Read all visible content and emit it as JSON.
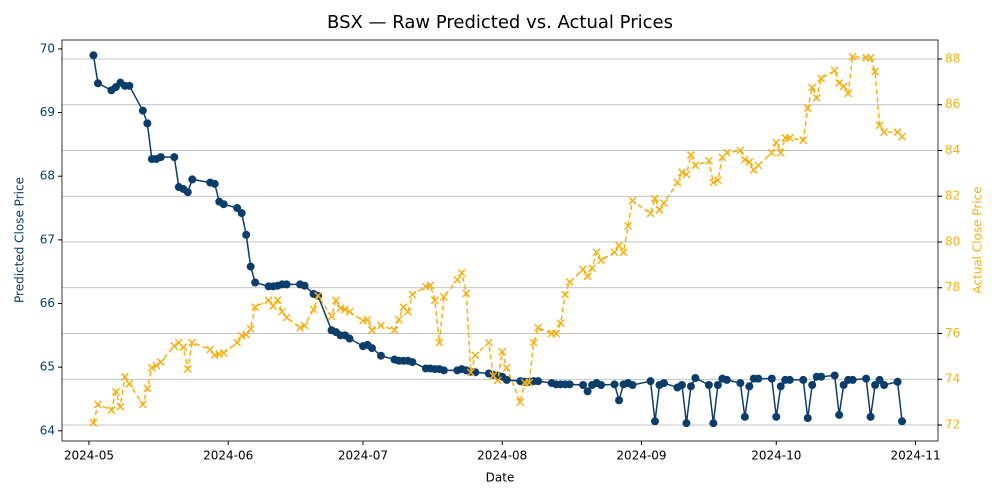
{
  "chart_data": {
    "type": "line",
    "title": "BSX — Raw Predicted vs. Actual Prices",
    "xlabel": "Date",
    "ylabel": "Predicted Close Price",
    "y2label": "Actual Close Price",
    "x": [
      "2024-05-02",
      "2024-05-03",
      "2024-05-06",
      "2024-05-07",
      "2024-05-08",
      "2024-05-09",
      "2024-05-10",
      "2024-05-13",
      "2024-05-14",
      "2024-05-15",
      "2024-05-16",
      "2024-05-17",
      "2024-05-20",
      "2024-05-21",
      "2024-05-22",
      "2024-05-23",
      "2024-05-24",
      "2024-05-28",
      "2024-05-29",
      "2024-05-30",
      "2024-05-31",
      "2024-06-03",
      "2024-06-04",
      "2024-06-05",
      "2024-06-06",
      "2024-06-07",
      "2024-06-10",
      "2024-06-11",
      "2024-06-12",
      "2024-06-13",
      "2024-06-14",
      "2024-06-17",
      "2024-06-18",
      "2024-06-20",
      "2024-06-21",
      "2024-06-24",
      "2024-06-25",
      "2024-06-26",
      "2024-06-27",
      "2024-06-28",
      "2024-07-01",
      "2024-07-02",
      "2024-07-03",
      "2024-07-05",
      "2024-07-08",
      "2024-07-09",
      "2024-07-10",
      "2024-07-11",
      "2024-07-12",
      "2024-07-15",
      "2024-07-16",
      "2024-07-17",
      "2024-07-18",
      "2024-07-19",
      "2024-07-22",
      "2024-07-23",
      "2024-07-24",
      "2024-07-25",
      "2024-07-26",
      "2024-07-29",
      "2024-07-30",
      "2024-07-31",
      "2024-08-01",
      "2024-08-02",
      "2024-08-05",
      "2024-08-06",
      "2024-08-07",
      "2024-08-08",
      "2024-08-09",
      "2024-08-12",
      "2024-08-13",
      "2024-08-14",
      "2024-08-15",
      "2024-08-16",
      "2024-08-19",
      "2024-08-20",
      "2024-08-21",
      "2024-08-22",
      "2024-08-23",
      "2024-08-26",
      "2024-08-27",
      "2024-08-28",
      "2024-08-29",
      "2024-08-30",
      "2024-09-03",
      "2024-09-04",
      "2024-09-05",
      "2024-09-06",
      "2024-09-09",
      "2024-09-10",
      "2024-09-11",
      "2024-09-12",
      "2024-09-13",
      "2024-09-16",
      "2024-09-17",
      "2024-09-18",
      "2024-09-19",
      "2024-09-20",
      "2024-09-23",
      "2024-09-24",
      "2024-09-25",
      "2024-09-26",
      "2024-09-27",
      "2024-09-30",
      "2024-10-01",
      "2024-10-02",
      "2024-10-03",
      "2024-10-04",
      "2024-10-07",
      "2024-10-08",
      "2024-10-09",
      "2024-10-10",
      "2024-10-11",
      "2024-10-14",
      "2024-10-15",
      "2024-10-16",
      "2024-10-17",
      "2024-10-18",
      "2024-10-21",
      "2024-10-22",
      "2024-10-23",
      "2024-10-24",
      "2024-10-25",
      "2024-10-28",
      "2024-10-29"
    ],
    "series": [
      {
        "name": "Predicted",
        "color": "#0b3d6b",
        "marker": "circle",
        "dash": false,
        "axis": "y",
        "values": [
          69.9,
          69.46,
          69.35,
          69.4,
          69.47,
          69.42,
          69.42,
          69.03,
          68.83,
          68.27,
          68.27,
          68.3,
          68.3,
          67.83,
          67.8,
          67.75,
          67.95,
          67.9,
          67.88,
          67.6,
          67.56,
          67.5,
          67.42,
          67.08,
          66.58,
          66.33,
          66.27,
          66.27,
          66.28,
          66.3,
          66.3,
          66.3,
          66.28,
          66.15,
          66.12,
          65.58,
          65.55,
          65.5,
          65.5,
          65.45,
          65.33,
          65.35,
          65.3,
          65.18,
          65.12,
          65.1,
          65.1,
          65.1,
          65.08,
          64.98,
          64.98,
          64.97,
          64.97,
          64.95,
          64.95,
          64.97,
          64.95,
          64.93,
          64.92,
          64.9,
          64.88,
          64.87,
          64.85,
          64.8,
          64.78,
          64.77,
          64.77,
          64.78,
          64.78,
          64.75,
          64.73,
          64.73,
          64.73,
          64.73,
          64.72,
          64.62,
          64.72,
          64.75,
          64.72,
          64.73,
          64.48,
          64.73,
          64.75,
          64.72,
          64.78,
          64.15,
          64.72,
          64.75,
          64.68,
          64.72,
          64.12,
          64.7,
          64.83,
          64.72,
          64.12,
          64.72,
          64.82,
          64.8,
          64.75,
          64.22,
          64.7,
          64.82,
          64.82,
          64.82,
          64.22,
          64.7,
          64.8,
          64.8,
          64.8,
          64.2,
          64.72,
          64.85,
          64.85,
          64.87,
          64.25,
          64.72,
          64.8,
          64.8,
          64.82,
          64.22,
          64.72,
          64.8,
          64.72,
          64.77,
          64.15
        ]
      },
      {
        "name": "Actual",
        "color": "#f5b014",
        "marker": "x",
        "dash": true,
        "axis": "y2",
        "values": [
          72.1,
          72.9,
          72.65,
          73.45,
          72.8,
          74.1,
          73.8,
          72.9,
          73.6,
          74.5,
          74.6,
          74.75,
          75.45,
          75.6,
          75.4,
          74.45,
          75.6,
          75.3,
          75.05,
          75.1,
          75.15,
          75.6,
          75.9,
          75.95,
          76.2,
          77.15,
          77.45,
          77.2,
          77.45,
          76.95,
          76.7,
          76.25,
          76.35,
          77.05,
          77.65,
          76.75,
          77.45,
          77.1,
          77.05,
          76.95,
          76.55,
          76.6,
          76.15,
          76.35,
          76.15,
          76.6,
          77.15,
          76.95,
          77.7,
          78.05,
          78.1,
          77.45,
          75.6,
          77.6,
          78.35,
          78.65,
          77.75,
          74.3,
          75.05,
          75.6,
          74.15,
          73.95,
          75.2,
          74.5,
          73.0,
          73.85,
          73.85,
          75.6,
          76.25,
          76.0,
          76.0,
          76.45,
          77.7,
          78.25,
          78.8,
          78.5,
          78.85,
          79.55,
          79.2,
          79.55,
          79.85,
          79.55,
          80.7,
          81.8,
          81.25,
          81.9,
          81.4,
          81.7,
          82.6,
          83.05,
          82.95,
          83.8,
          83.35,
          83.55,
          82.6,
          82.7,
          83.7,
          83.9,
          84.0,
          83.6,
          83.5,
          83.15,
          83.35,
          83.9,
          84.35,
          83.9,
          84.55,
          84.55,
          84.45,
          85.85,
          86.75,
          86.3,
          87.15,
          87.5,
          86.95,
          86.8,
          86.5,
          88.1,
          88.05,
          88.05,
          87.45,
          85.1,
          84.8,
          84.8,
          84.6
        ]
      }
    ],
    "xlim": [
      "2024-04-25",
      "2024-11-06"
    ],
    "xticks": [
      {
        "value": "2024-05-01",
        "label": "2024-05"
      },
      {
        "value": "2024-06-01",
        "label": "2024-06"
      },
      {
        "value": "2024-07-01",
        "label": "2024-07"
      },
      {
        "value": "2024-08-01",
        "label": "2024-08"
      },
      {
        "value": "2024-09-01",
        "label": "2024-09"
      },
      {
        "value": "2024-10-01",
        "label": "2024-10"
      },
      {
        "value": "2024-11-01",
        "label": "2024-11"
      }
    ],
    "ylim": [
      63.84,
      70.14
    ],
    "yticks": [
      64,
      65,
      66,
      67,
      68,
      69,
      70
    ],
    "y2lim": [
      71.3,
      88.83
    ],
    "y2ticks": [
      72,
      74,
      76,
      78,
      80,
      82,
      84,
      86,
      88
    ],
    "grid_axis": "y2"
  }
}
